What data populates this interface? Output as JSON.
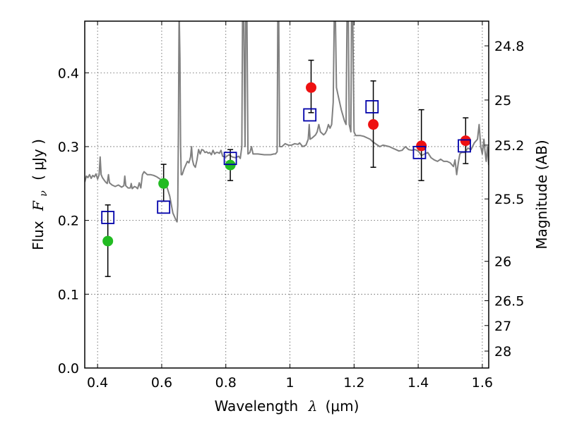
{
  "chart_data": {
    "type": "scatter",
    "title": "",
    "xlabel": {
      "text": "Wavelength",
      "symbol": "λ",
      "units": "(μm)"
    },
    "ylabel": {
      "text": "Flux",
      "symbol": "F",
      "subscript": "ν",
      "units": "( μJy )"
    },
    "ylabel_right": "Magnitude (AB)",
    "xlim": [
      0.36,
      1.62
    ],
    "ylim": [
      0.0,
      0.47
    ],
    "grid": true,
    "x_ticks": [
      {
        "value": 0.4,
        "label": "0.4"
      },
      {
        "value": 0.6,
        "label": "0.6"
      },
      {
        "value": 0.8,
        "label": "0.8"
      },
      {
        "value": 1.0,
        "label": "1"
      },
      {
        "value": 1.2,
        "label": "1.2"
      },
      {
        "value": 1.4,
        "label": "1.4"
      },
      {
        "value": 1.6,
        "label": "1.6"
      }
    ],
    "y_ticks": [
      {
        "value": 0.0,
        "label": "0.0"
      },
      {
        "value": 0.1,
        "label": "0.1"
      },
      {
        "value": 0.2,
        "label": "0.2"
      },
      {
        "value": 0.3,
        "label": "0.3"
      },
      {
        "value": 0.4,
        "label": "0.4"
      }
    ],
    "right_ticks": [
      {
        "value": 24.8,
        "label": "24.8"
      },
      {
        "value": 25.0,
        "label": "25"
      },
      {
        "value": 25.2,
        "label": "25.2"
      },
      {
        "value": 25.5,
        "label": "25.5"
      },
      {
        "value": 26.0,
        "label": "26"
      },
      {
        "value": 26.5,
        "label": "26.5"
      },
      {
        "value": 27.0,
        "label": "27"
      },
      {
        "value": 28.0,
        "label": "28"
      }
    ],
    "colors": {
      "spectrum": "#808080",
      "model_box": "#0000aa",
      "green": "#22bb22",
      "red": "#ee1111",
      "errorbar": "#000000",
      "grid": "#555555"
    },
    "model_photometry": [
      {
        "x": 0.432,
        "y": 0.204
      },
      {
        "x": 0.606,
        "y": 0.218
      },
      {
        "x": 0.814,
        "y": 0.284
      },
      {
        "x": 1.062,
        "y": 0.343
      },
      {
        "x": 1.256,
        "y": 0.354
      },
      {
        "x": 1.404,
        "y": 0.292
      },
      {
        "x": 1.544,
        "y": 0.301
      }
    ],
    "observed_green": [
      {
        "x": 0.432,
        "y": 0.172,
        "ylo": 0.124,
        "yhi": 0.221
      },
      {
        "x": 0.606,
        "y": 0.25,
        "ylo": 0.226,
        "yhi": 0.276
      },
      {
        "x": 0.814,
        "y": 0.275,
        "ylo": 0.254,
        "yhi": 0.296
      }
    ],
    "observed_red": [
      {
        "x": 1.066,
        "y": 0.38,
        "ylo": 0.346,
        "yhi": 0.417
      },
      {
        "x": 1.26,
        "y": 0.33,
        "ylo": 0.272,
        "yhi": 0.389
      },
      {
        "x": 1.41,
        "y": 0.301,
        "ylo": 0.254,
        "yhi": 0.35
      },
      {
        "x": 1.548,
        "y": 0.308,
        "ylo": 0.277,
        "yhi": 0.339
      }
    ],
    "spectrum": [
      [
        0.36,
        0.252
      ],
      [
        0.365,
        0.26
      ],
      [
        0.37,
        0.258
      ],
      [
        0.375,
        0.262
      ],
      [
        0.38,
        0.257
      ],
      [
        0.385,
        0.261
      ],
      [
        0.39,
        0.259
      ],
      [
        0.395,
        0.263
      ],
      [
        0.4,
        0.256
      ],
      [
        0.405,
        0.262
      ],
      [
        0.408,
        0.286
      ],
      [
        0.411,
        0.262
      ],
      [
        0.415,
        0.258
      ],
      [
        0.42,
        0.255
      ],
      [
        0.425,
        0.252
      ],
      [
        0.43,
        0.25
      ],
      [
        0.434,
        0.262
      ],
      [
        0.437,
        0.251
      ],
      [
        0.445,
        0.248
      ],
      [
        0.455,
        0.246
      ],
      [
        0.465,
        0.248
      ],
      [
        0.475,
        0.245
      ],
      [
        0.482,
        0.247
      ],
      [
        0.485,
        0.26
      ],
      [
        0.488,
        0.247
      ],
      [
        0.495,
        0.244
      ],
      [
        0.502,
        0.244
      ],
      [
        0.505,
        0.25
      ],
      [
        0.508,
        0.243
      ],
      [
        0.515,
        0.246
      ],
      [
        0.52,
        0.245
      ],
      [
        0.525,
        0.243
      ],
      [
        0.53,
        0.251
      ],
      [
        0.535,
        0.244
      ],
      [
        0.54,
        0.262
      ],
      [
        0.545,
        0.266
      ],
      [
        0.555,
        0.262
      ],
      [
        0.565,
        0.262
      ],
      [
        0.575,
        0.261
      ],
      [
        0.585,
        0.259
      ],
      [
        0.595,
        0.256
      ],
      [
        0.605,
        0.254
      ],
      [
        0.615,
        0.247
      ],
      [
        0.625,
        0.233
      ],
      [
        0.635,
        0.21
      ],
      [
        0.64,
        0.205
      ],
      [
        0.645,
        0.2
      ],
      [
        0.648,
        0.198
      ],
      [
        0.65,
        0.22
      ],
      [
        0.652,
        0.32
      ],
      [
        0.654,
        0.47
      ],
      [
        0.655,
        0.47
      ],
      [
        0.657,
        0.42
      ],
      [
        0.659,
        0.3
      ],
      [
        0.661,
        0.262
      ],
      [
        0.664,
        0.262
      ],
      [
        0.67,
        0.27
      ],
      [
        0.675,
        0.275
      ],
      [
        0.68,
        0.28
      ],
      [
        0.685,
        0.278
      ],
      [
        0.69,
        0.286
      ],
      [
        0.693,
        0.3
      ],
      [
        0.696,
        0.282
      ],
      [
        0.7,
        0.275
      ],
      [
        0.705,
        0.272
      ],
      [
        0.71,
        0.282
      ],
      [
        0.715,
        0.296
      ],
      [
        0.72,
        0.29
      ],
      [
        0.725,
        0.296
      ],
      [
        0.73,
        0.295
      ],
      [
        0.735,
        0.292
      ],
      [
        0.74,
        0.293
      ],
      [
        0.745,
        0.291
      ],
      [
        0.75,
        0.292
      ],
      [
        0.755,
        0.289
      ],
      [
        0.76,
        0.295
      ],
      [
        0.765,
        0.29
      ],
      [
        0.77,
        0.292
      ],
      [
        0.775,
        0.292
      ],
      [
        0.78,
        0.291
      ],
      [
        0.785,
        0.295
      ],
      [
        0.79,
        0.287
      ],
      [
        0.8,
        0.286
      ],
      [
        0.81,
        0.289
      ],
      [
        0.82,
        0.286
      ],
      [
        0.83,
        0.285
      ],
      [
        0.84,
        0.287
      ],
      [
        0.845,
        0.284
      ],
      [
        0.85,
        0.3
      ],
      [
        0.852,
        0.47
      ],
      [
        0.856,
        0.47
      ],
      [
        0.858,
        0.38
      ],
      [
        0.86,
        0.3
      ],
      [
        0.862,
        0.47
      ],
      [
        0.866,
        0.47
      ],
      [
        0.869,
        0.29
      ],
      [
        0.875,
        0.292
      ],
      [
        0.88,
        0.3
      ],
      [
        0.885,
        0.29
      ],
      [
        0.9,
        0.29
      ],
      [
        0.92,
        0.289
      ],
      [
        0.94,
        0.289
      ],
      [
        0.95,
        0.29
      ],
      [
        0.955,
        0.29
      ],
      [
        0.96,
        0.293
      ],
      [
        0.962,
        0.47
      ],
      [
        0.965,
        0.47
      ],
      [
        0.968,
        0.3
      ],
      [
        0.975,
        0.3
      ],
      [
        0.985,
        0.304
      ],
      [
        0.995,
        0.302
      ],
      [
        1.005,
        0.302
      ],
      [
        1.015,
        0.304
      ],
      [
        1.025,
        0.303
      ],
      [
        1.03,
        0.305
      ],
      [
        1.04,
        0.3
      ],
      [
        1.05,
        0.302
      ],
      [
        1.057,
        0.31
      ],
      [
        1.06,
        0.33
      ],
      [
        1.063,
        0.31
      ],
      [
        1.07,
        0.312
      ],
      [
        1.08,
        0.316
      ],
      [
        1.085,
        0.32
      ],
      [
        1.09,
        0.33
      ],
      [
        1.095,
        0.32
      ],
      [
        1.1,
        0.318
      ],
      [
        1.105,
        0.316
      ],
      [
        1.11,
        0.318
      ],
      [
        1.115,
        0.322
      ],
      [
        1.12,
        0.33
      ],
      [
        1.125,
        0.325
      ],
      [
        1.13,
        0.33
      ],
      [
        1.135,
        0.36
      ],
      [
        1.138,
        0.47
      ],
      [
        1.142,
        0.47
      ],
      [
        1.145,
        0.38
      ],
      [
        1.15,
        0.37
      ],
      [
        1.16,
        0.35
      ],
      [
        1.17,
        0.335
      ],
      [
        1.175,
        0.33
      ],
      [
        1.178,
        0.47
      ],
      [
        1.182,
        0.47
      ],
      [
        1.185,
        0.33
      ],
      [
        1.19,
        0.32
      ],
      [
        1.192,
        0.47
      ],
      [
        1.196,
        0.47
      ],
      [
        1.2,
        0.32
      ],
      [
        1.205,
        0.315
      ],
      [
        1.21,
        0.315
      ],
      [
        1.22,
        0.315
      ],
      [
        1.23,
        0.314
      ],
      [
        1.24,
        0.312
      ],
      [
        1.25,
        0.31
      ],
      [
        1.26,
        0.306
      ],
      [
        1.27,
        0.303
      ],
      [
        1.28,
        0.3
      ],
      [
        1.29,
        0.302
      ],
      [
        1.3,
        0.301
      ],
      [
        1.31,
        0.3
      ],
      [
        1.32,
        0.298
      ],
      [
        1.33,
        0.296
      ],
      [
        1.34,
        0.294
      ],
      [
        1.35,
        0.295
      ],
      [
        1.36,
        0.3
      ],
      [
        1.37,
        0.296
      ],
      [
        1.38,
        0.295
      ],
      [
        1.39,
        0.296
      ],
      [
        1.4,
        0.294
      ],
      [
        1.41,
        0.288
      ],
      [
        1.42,
        0.29
      ],
      [
        1.43,
        0.292
      ],
      [
        1.44,
        0.285
      ],
      [
        1.45,
        0.282
      ],
      [
        1.46,
        0.28
      ],
      [
        1.47,
        0.283
      ],
      [
        1.48,
        0.28
      ],
      [
        1.49,
        0.28
      ],
      [
        1.5,
        0.278
      ],
      [
        1.51,
        0.273
      ],
      [
        1.515,
        0.282
      ],
      [
        1.52,
        0.262
      ],
      [
        1.525,
        0.278
      ],
      [
        1.53,
        0.29
      ],
      [
        1.535,
        0.292
      ],
      [
        1.545,
        0.292
      ],
      [
        1.555,
        0.298
      ],
      [
        1.565,
        0.296
      ],
      [
        1.575,
        0.305
      ],
      [
        1.585,
        0.31
      ],
      [
        1.59,
        0.33
      ],
      [
        1.595,
        0.3
      ],
      [
        1.6,
        0.29
      ],
      [
        1.605,
        0.31
      ],
      [
        1.608,
        0.295
      ],
      [
        1.612,
        0.28
      ],
      [
        1.616,
        0.3
      ],
      [
        1.62,
        0.275
      ]
    ]
  }
}
